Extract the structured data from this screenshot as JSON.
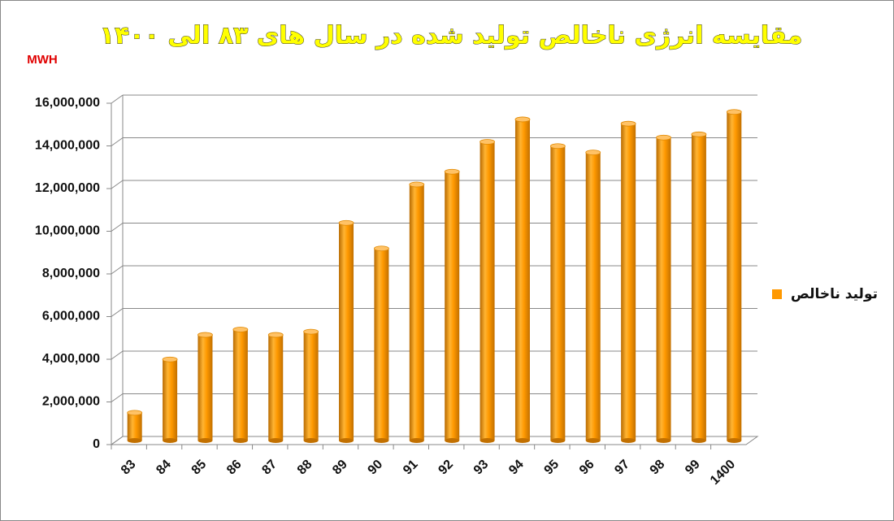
{
  "chart_data": {
    "type": "bar",
    "title": "مقایسه انرژی ناخالص تولید شده در سال های ۸۳ الی ۱۴۰۰",
    "y_label": "MWH",
    "categories": [
      "83",
      "84",
      "85",
      "86",
      "87",
      "88",
      "89",
      "90",
      "91",
      "92",
      "93",
      "94",
      "95",
      "96",
      "97",
      "98",
      "99",
      "1400"
    ],
    "series": [
      {
        "name": "تولید ناخالص",
        "color": "#ff9900",
        "values": [
          1300000,
          3800000,
          4950000,
          5200000,
          4950000,
          5100000,
          10200000,
          9000000,
          12000000,
          12600000,
          14000000,
          15050000,
          13800000,
          13500000,
          14850000,
          14200000,
          14350000,
          15400000
        ]
      }
    ],
    "ylim": [
      0,
      16000000
    ],
    "yticks": [
      0,
      {
        "value": 2000000,
        "label": "2,000,000"
      },
      {
        "value": 4000000,
        "label": "4,000,000"
      },
      {
        "value": 6000000,
        "label": "6,000,000"
      },
      {
        "value": 8000000,
        "label": "8,000,000"
      },
      {
        "value": 10000000,
        "label": "10,000,000"
      },
      {
        "value": 12000000,
        "label": "12,000,000"
      },
      {
        "value": 14000000,
        "label": "14,000,000"
      },
      {
        "value": 16000000,
        "label": "16,000,000"
      }
    ],
    "grid": true,
    "legend": "right"
  }
}
